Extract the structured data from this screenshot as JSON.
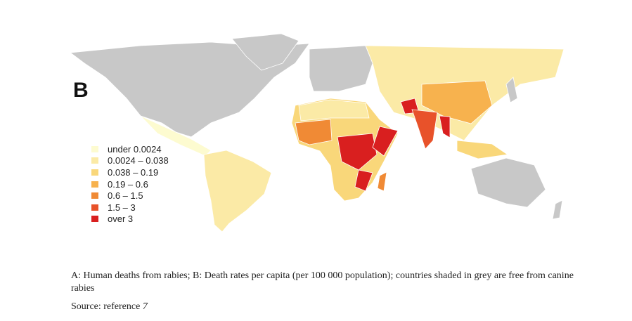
{
  "figure": {
    "panel_label": "B",
    "legend": {
      "items": [
        {
          "label": "under 0.0024",
          "color": "#fdfbd0"
        },
        {
          "label": "0.0024 – 0.038",
          "color": "#fbeaa6"
        },
        {
          "label": "0.038 – 0.19",
          "color": "#f9d77a"
        },
        {
          "label": "0.19 – 0.6",
          "color": "#f7b24e"
        },
        {
          "label": "0.6 – 1.5",
          "color": "#f08a35"
        },
        {
          "label": "1.5 – 3",
          "color": "#e8522a"
        },
        {
          "label": "over 3",
          "color": "#d91f1f"
        }
      ]
    },
    "colors": {
      "rabies_free": "#c8c8c8",
      "border": "#ffffff"
    }
  },
  "caption": "A: Human deaths from rabies; B: Death rates per capita (per 100 000 population); countries shaded in grey are free from canine rabies",
  "source": {
    "prefix": "Source: reference ",
    "ref": "7"
  }
}
